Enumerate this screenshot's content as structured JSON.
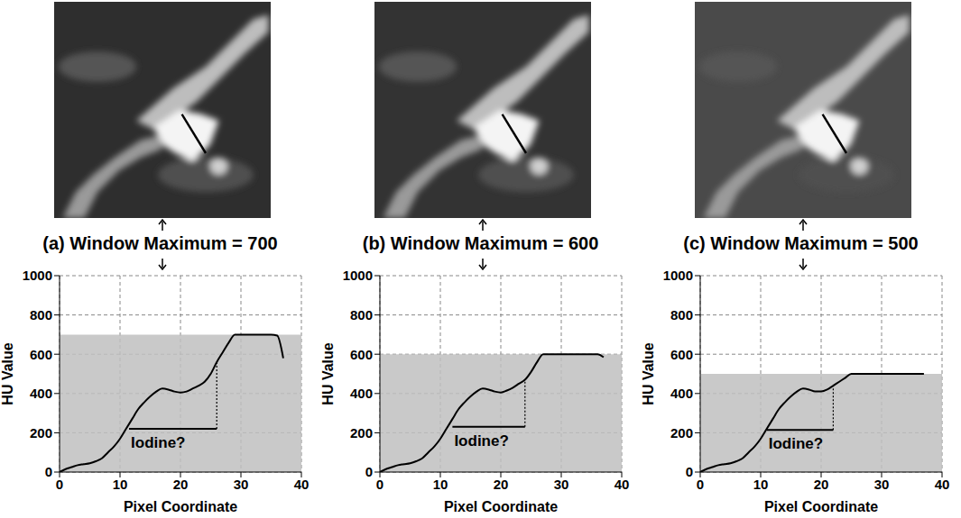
{
  "chart_data": [
    {
      "type": "line",
      "title": "(a) Window Maximum = 700",
      "x_label": "Pixel Coordinate",
      "y_label": "HU Value",
      "x": [
        0,
        1,
        2,
        3,
        4,
        5,
        6,
        7,
        8,
        9,
        10,
        11,
        12,
        13,
        14,
        15,
        16,
        17,
        18,
        19,
        20,
        21,
        22,
        23,
        24,
        25,
        26,
        27,
        28,
        29,
        30,
        31,
        32,
        33,
        34,
        35,
        36,
        37
      ],
      "values": [
        0,
        15,
        25,
        35,
        40,
        45,
        55,
        70,
        100,
        130,
        170,
        220,
        270,
        320,
        355,
        385,
        410,
        425,
        420,
        410,
        405,
        410,
        425,
        440,
        460,
        500,
        560,
        610,
        660,
        700,
        700,
        700,
        700,
        700,
        700,
        700,
        695,
        580
      ],
      "color": "#000000",
      "xlim": [
        0,
        40
      ],
      "ylim": [
        0,
        1000
      ],
      "xticks": [
        0,
        10,
        20,
        30,
        40
      ],
      "yticks": [
        0,
        200,
        400,
        600,
        800,
        1000
      ],
      "grid": true,
      "window_max": 700,
      "annotation": {
        "text": "Iodine?",
        "x0": 11.5,
        "x1": 26,
        "y": 220,
        "y_top": 560
      }
    },
    {
      "type": "line",
      "title": "(b) Window Maximum = 600",
      "x_label": "Pixel Coordinate",
      "y_label": "HU Value",
      "x": [
        0,
        1,
        2,
        3,
        4,
        5,
        6,
        7,
        8,
        9,
        10,
        11,
        12,
        13,
        14,
        15,
        16,
        17,
        18,
        19,
        20,
        21,
        22,
        23,
        24,
        25,
        26,
        27,
        28,
        29,
        30,
        31,
        32,
        33,
        34,
        35,
        36,
        37
      ],
      "values": [
        0,
        15,
        25,
        35,
        40,
        45,
        55,
        70,
        100,
        130,
        170,
        220,
        270,
        320,
        355,
        385,
        410,
        425,
        420,
        410,
        405,
        415,
        430,
        450,
        470,
        510,
        560,
        600,
        600,
        600,
        600,
        600,
        600,
        600,
        600,
        600,
        600,
        585
      ],
      "color": "#000000",
      "xlim": [
        0,
        40
      ],
      "ylim": [
        0,
        1000
      ],
      "xticks": [
        0,
        10,
        20,
        30,
        40
      ],
      "yticks": [
        0,
        200,
        400,
        600,
        800,
        1000
      ],
      "grid": true,
      "window_max": 600,
      "annotation": {
        "text": "Iodine?",
        "x0": 12,
        "x1": 24,
        "y": 230,
        "y_top": 470
      }
    },
    {
      "type": "line",
      "title": "(c) Window Maximum = 500",
      "x_label": "Pixel Coordinate",
      "y_label": "HU Value",
      "x": [
        0,
        1,
        2,
        3,
        4,
        5,
        6,
        7,
        8,
        9,
        10,
        11,
        12,
        13,
        14,
        15,
        16,
        17,
        18,
        19,
        20,
        21,
        22,
        23,
        24,
        25,
        26,
        27,
        28,
        29,
        30,
        31,
        32,
        33,
        34,
        35,
        36,
        37
      ],
      "values": [
        0,
        15,
        25,
        35,
        40,
        45,
        55,
        70,
        100,
        130,
        170,
        220,
        270,
        320,
        355,
        385,
        410,
        425,
        420,
        410,
        410,
        420,
        440,
        460,
        480,
        500,
        500,
        500,
        500,
        500,
        500,
        500,
        500,
        500,
        500,
        500,
        500,
        500
      ],
      "color": "#000000",
      "xlim": [
        0,
        40
      ],
      "ylim": [
        0,
        1000
      ],
      "xticks": [
        0,
        10,
        20,
        30,
        40
      ],
      "yticks": [
        0,
        200,
        400,
        600,
        800,
        1000
      ],
      "grid": true,
      "window_max": 500,
      "annotation": {
        "text": "Iodine?",
        "x0": 11,
        "x1": 22,
        "y": 215,
        "y_top": 440
      }
    }
  ]
}
